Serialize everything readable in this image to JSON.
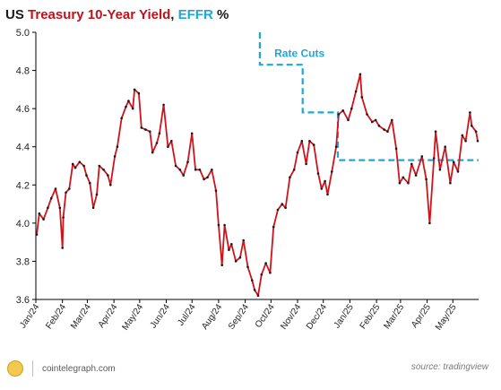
{
  "title": {
    "part1": "US ",
    "part2": "Treasury 10-Year Yield",
    "part3": ", ",
    "part4": "EFFR",
    "part5": " %"
  },
  "annotation": "Rate Cuts",
  "footer": {
    "brand": "cointelegraph.com",
    "source": "source: tradingview"
  },
  "colors": {
    "yield_line": "#d0141c",
    "yield_dots": "#1a1a1a",
    "effr_line": "#1fa7d6",
    "annotation": "#1fa7d6",
    "axis": "#000000"
  },
  "chart_data": {
    "type": "line",
    "title": "US Treasury 10-Year Yield, EFFR %",
    "ylim": [
      3.6,
      5.0
    ],
    "yticks": [
      "3.6",
      "3.8",
      "4.0",
      "4.2",
      "4.4",
      "4.6",
      "4.8",
      "5.0"
    ],
    "xlim": [
      "2024-01-01",
      "2025-05-31"
    ],
    "xticks": [
      {
        "label": "Jan/24",
        "date": "2024-01-01"
      },
      {
        "label": "Feb/24",
        "date": "2024-02-01"
      },
      {
        "label": "Mar/24",
        "date": "2024-03-01"
      },
      {
        "label": "Apr/24",
        "date": "2024-04-01"
      },
      {
        "label": "May/24",
        "date": "2024-05-01"
      },
      {
        "label": "Jun/24",
        "date": "2024-06-01"
      },
      {
        "label": "Jul/24",
        "date": "2024-07-01"
      },
      {
        "label": "Aug/24",
        "date": "2024-08-01"
      },
      {
        "label": "Sep/24",
        "date": "2024-09-01"
      },
      {
        "label": "Oct/24",
        "date": "2024-10-01"
      },
      {
        "label": "Nov/24",
        "date": "2024-11-01"
      },
      {
        "label": "Dec/24",
        "date": "2024-12-01"
      },
      {
        "label": "Jan/25",
        "date": "2025-01-01"
      },
      {
        "label": "Feb/25",
        "date": "2025-02-01"
      },
      {
        "label": "Mar/25",
        "date": "2025-03-01"
      },
      {
        "label": "Apr/25",
        "date": "2025-04-01"
      },
      {
        "label": "May/25",
        "date": "2025-05-01"
      }
    ],
    "series": [
      {
        "name": "US Treasury 10-Year Yield",
        "points": [
          [
            "2024-01-02",
            3.94
          ],
          [
            "2024-01-05",
            4.05
          ],
          [
            "2024-01-10",
            4.02
          ],
          [
            "2024-01-15",
            4.08
          ],
          [
            "2024-01-19",
            4.13
          ],
          [
            "2024-01-24",
            4.18
          ],
          [
            "2024-01-29",
            4.08
          ],
          [
            "2024-02-01",
            3.87
          ],
          [
            "2024-02-02",
            4.03
          ],
          [
            "2024-02-05",
            4.16
          ],
          [
            "2024-02-09",
            4.18
          ],
          [
            "2024-02-13",
            4.31
          ],
          [
            "2024-02-16",
            4.29
          ],
          [
            "2024-02-21",
            4.32
          ],
          [
            "2024-02-26",
            4.3
          ],
          [
            "2024-02-29",
            4.25
          ],
          [
            "2024-03-04",
            4.21
          ],
          [
            "2024-03-08",
            4.08
          ],
          [
            "2024-03-12",
            4.15
          ],
          [
            "2024-03-15",
            4.3
          ],
          [
            "2024-03-20",
            4.28
          ],
          [
            "2024-03-25",
            4.25
          ],
          [
            "2024-03-28",
            4.2
          ],
          [
            "2024-04-02",
            4.35
          ],
          [
            "2024-04-05",
            4.4
          ],
          [
            "2024-04-10",
            4.55
          ],
          [
            "2024-04-15",
            4.61
          ],
          [
            "2024-04-18",
            4.64
          ],
          [
            "2024-04-23",
            4.6
          ],
          [
            "2024-04-25",
            4.7
          ],
          [
            "2024-04-30",
            4.68
          ],
          [
            "2024-05-03",
            4.5
          ],
          [
            "2024-05-08",
            4.49
          ],
          [
            "2024-05-13",
            4.48
          ],
          [
            "2024-05-16",
            4.37
          ],
          [
            "2024-05-21",
            4.42
          ],
          [
            "2024-05-24",
            4.47
          ],
          [
            "2024-05-29",
            4.62
          ],
          [
            "2024-06-03",
            4.4
          ],
          [
            "2024-06-07",
            4.43
          ],
          [
            "2024-06-12",
            4.3
          ],
          [
            "2024-06-17",
            4.28
          ],
          [
            "2024-06-21",
            4.25
          ],
          [
            "2024-06-26",
            4.32
          ],
          [
            "2024-07-01",
            4.47
          ],
          [
            "2024-07-05",
            4.28
          ],
          [
            "2024-07-10",
            4.28
          ],
          [
            "2024-07-15",
            4.23
          ],
          [
            "2024-07-19",
            4.24
          ],
          [
            "2024-07-24",
            4.28
          ],
          [
            "2024-07-29",
            4.17
          ],
          [
            "2024-08-01",
            3.99
          ],
          [
            "2024-08-05",
            3.78
          ],
          [
            "2024-08-08",
            3.99
          ],
          [
            "2024-08-13",
            3.86
          ],
          [
            "2024-08-16",
            3.89
          ],
          [
            "2024-08-21",
            3.8
          ],
          [
            "2024-08-26",
            3.82
          ],
          [
            "2024-08-30",
            3.91
          ],
          [
            "2024-09-04",
            3.77
          ],
          [
            "2024-09-09",
            3.7
          ],
          [
            "2024-09-12",
            3.65
          ],
          [
            "2024-09-16",
            3.62
          ],
          [
            "2024-09-20",
            3.73
          ],
          [
            "2024-09-25",
            3.79
          ],
          [
            "2024-09-30",
            3.74
          ],
          [
            "2024-10-04",
            3.98
          ],
          [
            "2024-10-09",
            4.07
          ],
          [
            "2024-10-14",
            4.1
          ],
          [
            "2024-10-18",
            4.08
          ],
          [
            "2024-10-23",
            4.24
          ],
          [
            "2024-10-28",
            4.28
          ],
          [
            "2024-11-01",
            4.37
          ],
          [
            "2024-11-06",
            4.43
          ],
          [
            "2024-11-11",
            4.31
          ],
          [
            "2024-11-15",
            4.43
          ],
          [
            "2024-11-20",
            4.41
          ],
          [
            "2024-11-25",
            4.26
          ],
          [
            "2024-11-29",
            4.18
          ],
          [
            "2024-12-03",
            4.22
          ],
          [
            "2024-12-06",
            4.15
          ],
          [
            "2024-12-11",
            4.27
          ],
          [
            "2024-12-16",
            4.4
          ],
          [
            "2024-12-19",
            4.57
          ],
          [
            "2024-12-24",
            4.59
          ],
          [
            "2024-12-30",
            4.54
          ],
          [
            "2025-01-03",
            4.6
          ],
          [
            "2025-01-08",
            4.69
          ],
          [
            "2025-01-13",
            4.78
          ],
          [
            "2025-01-15",
            4.66
          ],
          [
            "2025-01-21",
            4.57
          ],
          [
            "2025-01-27",
            4.53
          ],
          [
            "2025-01-31",
            4.54
          ],
          [
            "2025-02-04",
            4.51
          ],
          [
            "2025-02-10",
            4.49
          ],
          [
            "2025-02-14",
            4.48
          ],
          [
            "2025-02-19",
            4.54
          ],
          [
            "2025-02-24",
            4.39
          ],
          [
            "2025-02-28",
            4.21
          ],
          [
            "2025-03-04",
            4.24
          ],
          [
            "2025-03-10",
            4.21
          ],
          [
            "2025-03-14",
            4.31
          ],
          [
            "2025-03-19",
            4.25
          ],
          [
            "2025-03-26",
            4.35
          ],
          [
            "2025-03-31",
            4.23
          ],
          [
            "2025-04-04",
            4.0
          ],
          [
            "2025-04-09",
            4.34
          ],
          [
            "2025-04-11",
            4.48
          ],
          [
            "2025-04-16",
            4.28
          ],
          [
            "2025-04-22",
            4.4
          ],
          [
            "2025-04-28",
            4.21
          ],
          [
            "2025-05-02",
            4.32
          ],
          [
            "2025-05-07",
            4.27
          ],
          [
            "2025-05-12",
            4.46
          ],
          [
            "2025-05-16",
            4.43
          ],
          [
            "2025-05-21",
            4.58
          ],
          [
            "2025-05-23",
            4.51
          ],
          [
            "2025-05-28",
            4.48
          ],
          [
            "2025-05-30",
            4.43
          ]
        ]
      },
      {
        "name": "EFFR",
        "points": [
          [
            "2024-09-18",
            5.0
          ],
          [
            "2024-09-18",
            4.83
          ],
          [
            "2024-11-07",
            4.83
          ],
          [
            "2024-11-07",
            4.58
          ],
          [
            "2024-12-18",
            4.58
          ],
          [
            "2024-12-18",
            4.33
          ],
          [
            "2025-05-31",
            4.33
          ]
        ]
      }
    ]
  }
}
